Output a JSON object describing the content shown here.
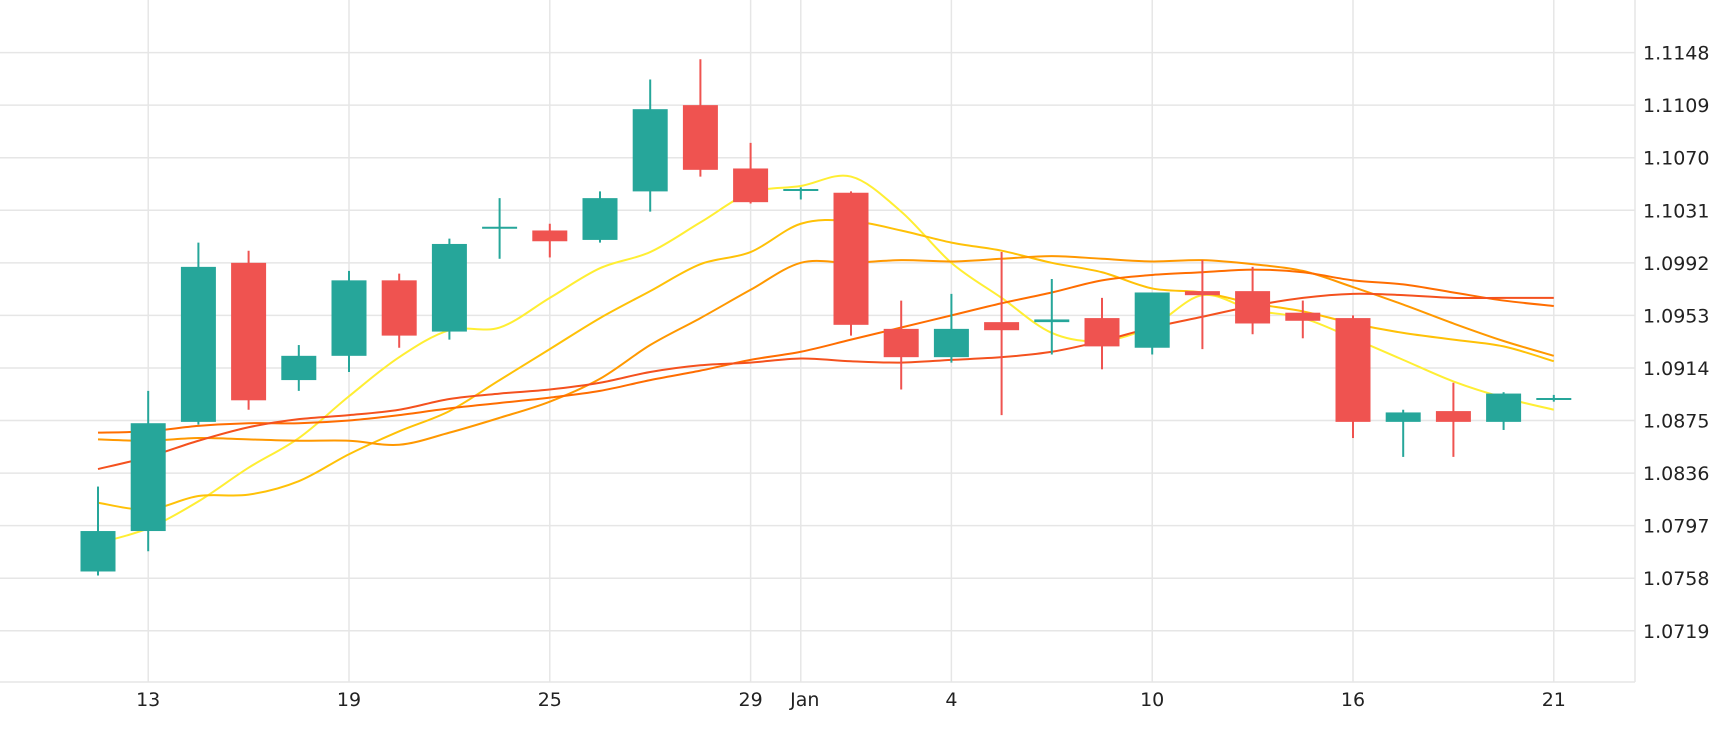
{
  "chart_data": {
    "type": "candlestick",
    "title": "",
    "xlabel": "",
    "ylabel": "",
    "ylim": [
      1.0681,
      1.1187
    ],
    "grid": true,
    "up_color": "#26a69a",
    "down_color": "#ef5350",
    "x_ticks": [
      {
        "label": "13",
        "index": 1
      },
      {
        "label": "19",
        "index": 5
      },
      {
        "label": "25",
        "index": 9
      },
      {
        "label": "29",
        "index": 13
      },
      {
        "label": "Jan",
        "index": 14
      },
      {
        "label": "4",
        "index": 17
      },
      {
        "label": "10",
        "index": 21
      },
      {
        "label": "16",
        "index": 25
      },
      {
        "label": "21",
        "index": 29
      }
    ],
    "y_ticks": [
      "1.1148",
      "1.1109",
      "1.1070",
      "1.1031",
      "1.0992",
      "1.0953",
      "1.0914",
      "1.0875",
      "1.0836",
      "1.0797",
      "1.0758",
      "1.0719"
    ],
    "candles": [
      {
        "o": 1.0763,
        "h": 1.0826,
        "l": 1.076,
        "c": 1.0793
      },
      {
        "o": 1.0793,
        "h": 1.0897,
        "l": 1.0778,
        "c": 1.0873
      },
      {
        "o": 1.0874,
        "h": 1.1007,
        "l": 1.0872,
        "c": 1.0989
      },
      {
        "o": 1.0992,
        "h": 1.1001,
        "l": 1.0883,
        "c": 1.089
      },
      {
        "o": 1.0905,
        "h": 1.0931,
        "l": 1.0897,
        "c": 1.0923
      },
      {
        "o": 1.0923,
        "h": 1.0986,
        "l": 1.0911,
        "c": 1.0979
      },
      {
        "o": 1.0979,
        "h": 1.0984,
        "l": 1.0929,
        "c": 1.0938
      },
      {
        "o": 1.0941,
        "h": 1.101,
        "l": 1.0935,
        "c": 1.1006
      },
      {
        "o": 1.1018,
        "h": 1.104,
        "l": 1.0995,
        "c": 1.1018
      },
      {
        "o": 1.1016,
        "h": 1.1021,
        "l": 1.0996,
        "c": 1.1008
      },
      {
        "o": 1.1009,
        "h": 1.1045,
        "l": 1.1007,
        "c": 1.104
      },
      {
        "o": 1.1045,
        "h": 1.1128,
        "l": 1.103,
        "c": 1.1106
      },
      {
        "o": 1.1109,
        "h": 1.1143,
        "l": 1.1056,
        "c": 1.1061
      },
      {
        "o": 1.1062,
        "h": 1.1081,
        "l": 1.1036,
        "c": 1.1037
      },
      {
        "o": 1.1045,
        "h": 1.1048,
        "l": 1.1039,
        "c": 1.1046
      },
      {
        "o": 1.1044,
        "h": 1.1045,
        "l": 1.0938,
        "c": 1.0946
      },
      {
        "o": 1.0943,
        "h": 1.0964,
        "l": 1.0898,
        "c": 1.0922
      },
      {
        "o": 1.0922,
        "h": 1.0969,
        "l": 1.0918,
        "c": 1.0943
      },
      {
        "o": 1.0948,
        "h": 1.1,
        "l": 1.0879,
        "c": 1.0942
      },
      {
        "o": 1.0948,
        "h": 1.098,
        "l": 1.0924,
        "c": 1.095
      },
      {
        "o": 1.0951,
        "h": 1.0966,
        "l": 1.0913,
        "c": 1.093
      },
      {
        "o": 1.0929,
        "h": 1.0969,
        "l": 1.0924,
        "c": 1.097
      },
      {
        "o": 1.0971,
        "h": 1.0994,
        "l": 1.0928,
        "c": 1.0968
      },
      {
        "o": 1.0971,
        "h": 1.0989,
        "l": 1.0939,
        "c": 1.0947
      },
      {
        "o": 1.0955,
        "h": 1.0964,
        "l": 1.0936,
        "c": 1.0949
      },
      {
        "o": 1.0951,
        "h": 1.0953,
        "l": 1.0862,
        "c": 1.0874
      },
      {
        "o": 1.0874,
        "h": 1.0883,
        "l": 1.0848,
        "c": 1.0881
      },
      {
        "o": 1.0882,
        "h": 1.0903,
        "l": 1.0848,
        "c": 1.0874
      },
      {
        "o": 1.0874,
        "h": 1.0896,
        "l": 1.0868,
        "c": 1.0895
      },
      {
        "o": 1.089,
        "h": 1.0894,
        "l": 1.0889,
        "c": 1.0891
      }
    ],
    "moving_averages": [
      {
        "color": "#ffee33",
        "x_start": 0,
        "values": [
          1.0784,
          1.0795,
          1.0815,
          1.084,
          1.0862,
          1.0893,
          1.0922,
          1.0942,
          1.0944,
          1.0966,
          1.0988,
          1.1,
          1.1022,
          1.1044,
          1.1049,
          1.1056,
          1.103,
          1.0992,
          1.0966,
          1.094,
          1.0934,
          1.0945,
          1.0968,
          1.0957,
          1.0951,
          1.0936,
          1.092,
          1.0904,
          1.0892,
          1.0883
        ]
      },
      {
        "color": "#ffc107",
        "x_start": 0,
        "values": [
          1.0814,
          1.0809,
          1.0819,
          1.082,
          1.083,
          1.085,
          1.0867,
          1.0882,
          1.0905,
          1.0928,
          1.0951,
          1.0971,
          1.0991,
          1.1,
          1.1021,
          1.1023,
          1.1016,
          1.1007,
          1.1001,
          1.0992,
          1.0985,
          1.0973,
          1.097,
          1.0962,
          1.0956,
          1.0947,
          1.094,
          1.0935,
          1.093,
          1.0919
        ]
      },
      {
        "color": "#ff9800",
        "x_start": 0,
        "values": [
          1.0861,
          1.086,
          1.0862,
          1.0861,
          1.086,
          1.086,
          1.0857,
          1.0866,
          1.0877,
          1.0889,
          1.0906,
          1.0931,
          1.0951,
          1.0972,
          1.0992,
          1.0992,
          1.0994,
          1.0993,
          1.0995,
          1.0997,
          1.0995,
          1.0993,
          1.0994,
          1.0991,
          1.0986,
          1.0974,
          1.0961,
          1.0947,
          1.0934,
          1.0923
        ]
      },
      {
        "color": "#ff6d00",
        "x_start": 0,
        "values": [
          1.0866,
          1.0867,
          1.0871,
          1.0873,
          1.0873,
          1.0875,
          1.0879,
          1.0884,
          1.0888,
          1.0892,
          1.0897,
          1.0905,
          1.0912,
          1.092,
          1.0926,
          1.0935,
          1.0944,
          1.0953,
          1.0962,
          1.097,
          1.0979,
          1.0983,
          1.0985,
          1.0987,
          1.0985,
          1.0979,
          1.0976,
          1.097,
          1.0964,
          1.096
        ]
      },
      {
        "color": "#f4511e",
        "x_start": 0,
        "values": [
          1.0839,
          1.0848,
          1.086,
          1.087,
          1.0876,
          1.0879,
          1.0883,
          1.0891,
          1.0895,
          1.0898,
          1.0903,
          1.0911,
          1.0916,
          1.0918,
          1.0921,
          1.0919,
          1.0918,
          1.092,
          1.0922,
          1.0926,
          1.0934,
          1.0944,
          1.0952,
          1.096,
          1.0966,
          1.0969,
          1.0968,
          1.0966,
          1.0966,
          1.0966
        ]
      }
    ]
  }
}
